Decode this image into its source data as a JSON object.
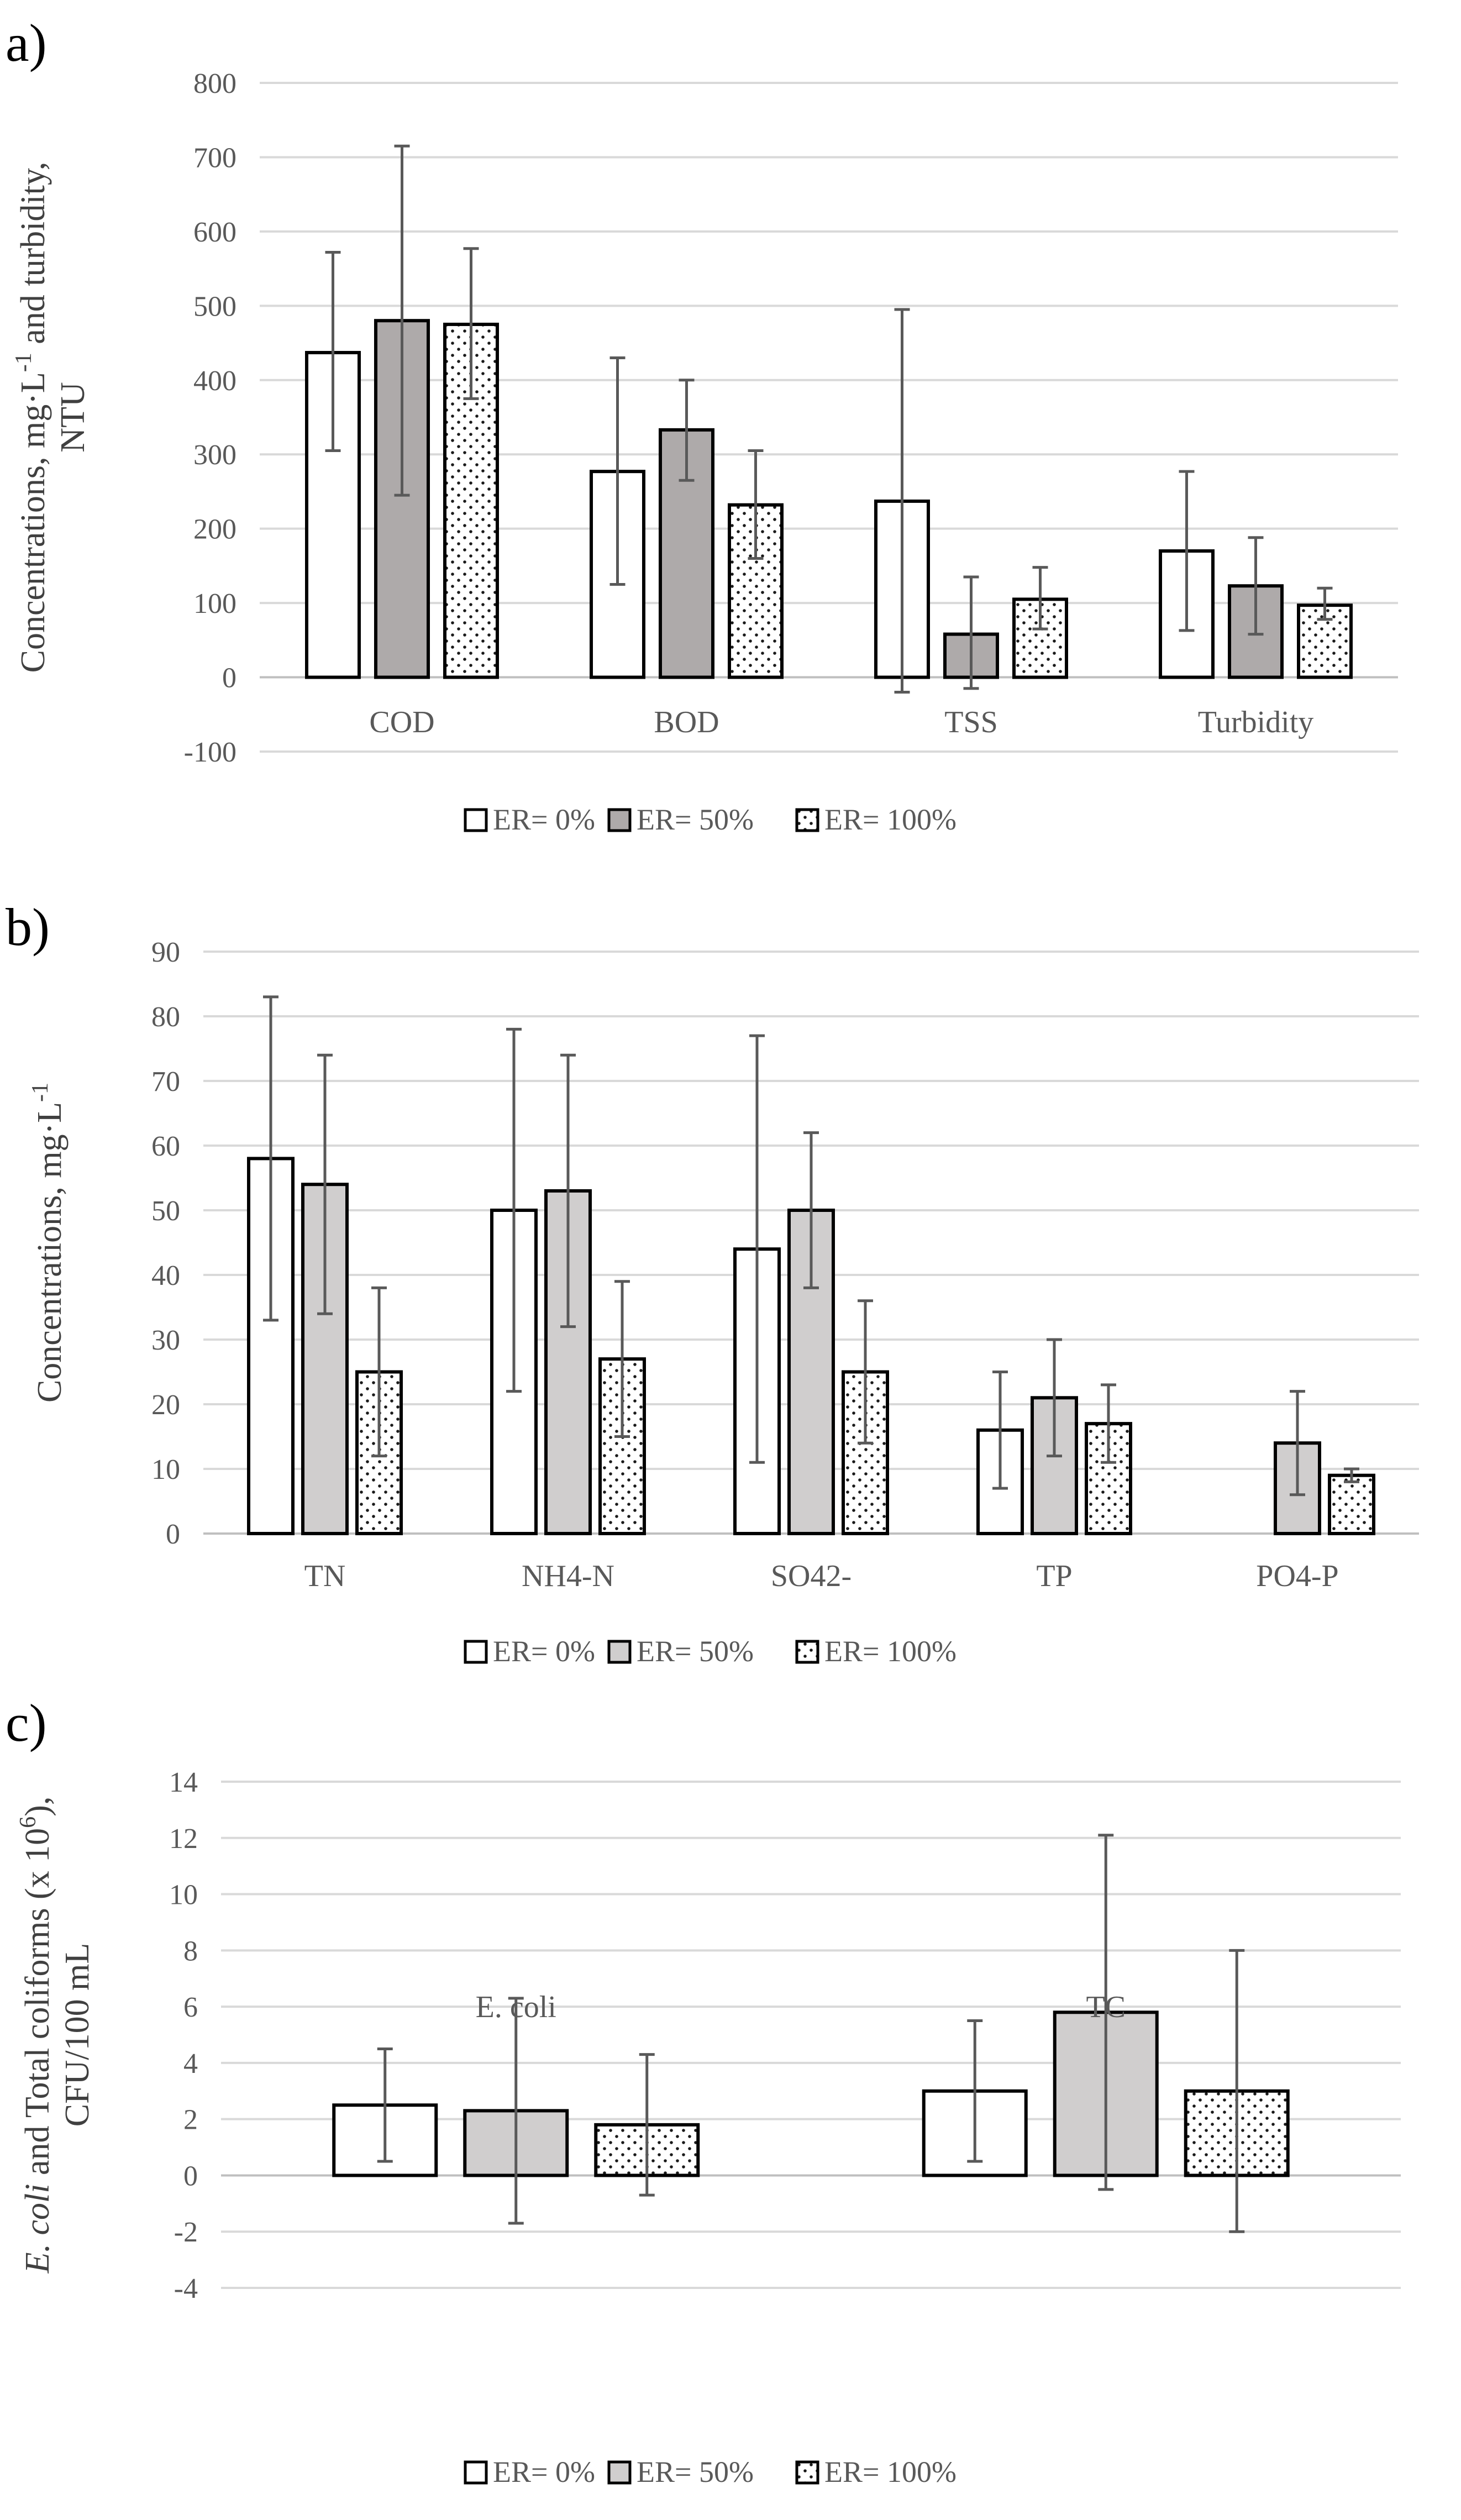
{
  "styles": {
    "fill_er0": "#ffffff",
    "fill_er50_a": "#aeaaaa",
    "fill_er50_b": "#d0cece",
    "fill_er50_c": "#d0cece",
    "dot_color": "#1a1a1a",
    "error_color": "#595959",
    "grid_color": "#d9d9d9",
    "text_color": "#595959"
  },
  "panels": [
    {
      "label": "a)",
      "ylabel_lines": [
        "Concentrations, mg·L-1 and turbidity,",
        "NTU"
      ],
      "ylabel_parts": [
        {
          "text": "Concentrations, mg·L"
        },
        {
          "text": "-1",
          "sup": true
        },
        {
          "text": " and turbidity,"
        }
      ],
      "ylabel_line2": "NTU"
    },
    {
      "label": "b)",
      "ylabel_parts": [
        {
          "text": "Concentrations, mg·L"
        },
        {
          "text": "-1",
          "sup": true
        }
      ]
    },
    {
      "label": "c)",
      "ylabel_parts": [
        {
          "text": "E. coli",
          "italic": true
        },
        {
          "text": " and Total coliforms (x 10"
        },
        {
          "text": "6",
          "sup": true
        },
        {
          "text": "),"
        }
      ],
      "ylabel_line2": "CFU/100 mL"
    }
  ],
  "legend": {
    "items": [
      "ER= 0%",
      "ER= 50%",
      "ER= 100%"
    ]
  },
  "chart_data": [
    {
      "type": "bar",
      "title": "a)",
      "xlabel": "",
      "ylabel": "Concentrations, mg·L-1 and turbidity, NTU",
      "categories": [
        "COD",
        "BOD",
        "TSS",
        "Turbidity"
      ],
      "ylim": [
        -100,
        800
      ],
      "yticks": [
        -100,
        0,
        100,
        200,
        300,
        400,
        500,
        600,
        700,
        800
      ],
      "series": [
        {
          "name": "ER= 0%",
          "values": [
            437,
            277,
            237,
            170
          ],
          "err_low": [
            305,
            125,
            -20,
            63
          ],
          "err_high": [
            572,
            430,
            495,
            277
          ]
        },
        {
          "name": "ER= 50%",
          "values": [
            480,
            333,
            58,
            123
          ],
          "err_low": [
            245,
            265,
            -15,
            58
          ],
          "err_high": [
            715,
            400,
            135,
            188
          ]
        },
        {
          "name": "ER= 100%",
          "values": [
            475,
            232,
            105,
            97
          ],
          "err_low": [
            375,
            160,
            65,
            78
          ],
          "err_high": [
            577,
            305,
            148,
            120
          ]
        }
      ]
    },
    {
      "type": "bar",
      "title": "b)",
      "xlabel": "",
      "ylabel": "Concentrations, mg·L-1",
      "categories": [
        "TN",
        "NH4-N",
        "SO42-",
        "TP",
        "PO4-P"
      ],
      "ylim": [
        0,
        90
      ],
      "yticks": [
        0,
        10,
        20,
        30,
        40,
        50,
        60,
        70,
        80,
        90
      ],
      "series": [
        {
          "name": "ER= 0%",
          "values": [
            58,
            50,
            44,
            16,
            null
          ],
          "err_low": [
            33,
            22,
            11,
            7,
            null
          ],
          "err_high": [
            83,
            78,
            77,
            25,
            null
          ]
        },
        {
          "name": "ER= 50%",
          "values": [
            54,
            53,
            50,
            21,
            14
          ],
          "err_low": [
            34,
            32,
            38,
            12,
            6
          ],
          "err_high": [
            74,
            74,
            62,
            30,
            22
          ]
        },
        {
          "name": "ER= 100%",
          "values": [
            25,
            27,
            25,
            17,
            9
          ],
          "err_low": [
            12,
            15,
            14,
            11,
            8
          ],
          "err_high": [
            38,
            39,
            36,
            23,
            10
          ]
        }
      ]
    },
    {
      "type": "bar",
      "title": "c)",
      "xlabel": "",
      "ylabel": "E. coli and Total coliforms (x 10^6), CFU/100 mL",
      "categories": [
        "E. coli",
        "TC"
      ],
      "ylim": [
        -4,
        14
      ],
      "yticks": [
        -4,
        -2,
        0,
        2,
        4,
        6,
        8,
        10,
        12,
        14
      ],
      "series": [
        {
          "name": "ER= 0%",
          "values": [
            2.5,
            3.0
          ],
          "err_low": [
            0.5,
            0.5
          ],
          "err_high": [
            4.5,
            5.5
          ]
        },
        {
          "name": "ER= 50%",
          "values": [
            2.3,
            5.8
          ],
          "err_low": [
            -1.7,
            -0.5
          ],
          "err_high": [
            6.3,
            12.1
          ]
        },
        {
          "name": "ER= 100%",
          "values": [
            1.8,
            3.0
          ],
          "err_low": [
            -0.7,
            -2.0
          ],
          "err_high": [
            4.3,
            8.0
          ]
        }
      ]
    }
  ]
}
